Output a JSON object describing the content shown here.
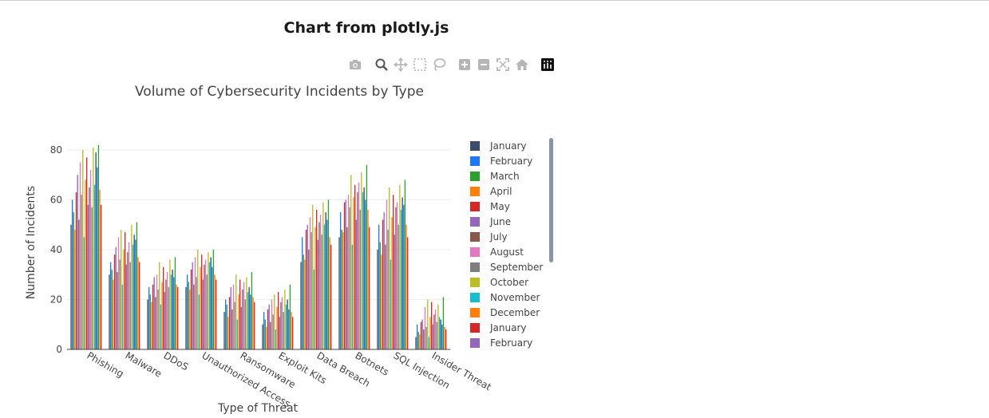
{
  "page": {
    "title": "Chart from plotly.js"
  },
  "modebar": {
    "buttons": [
      {
        "name": "camera-icon",
        "label": "Download plot as a png"
      },
      {
        "name": "zoom-icon",
        "label": "Zoom"
      },
      {
        "name": "pan-icon",
        "label": "Pan"
      },
      {
        "name": "box-select-icon",
        "label": "Box Select"
      },
      {
        "name": "lasso-select-icon",
        "label": "Lasso Select"
      },
      {
        "name": "zoom-in-icon",
        "label": "Zoom in"
      },
      {
        "name": "zoom-out-icon",
        "label": "Zoom out"
      },
      {
        "name": "autoscale-icon",
        "label": "Autoscale"
      },
      {
        "name": "reset-axes-icon",
        "label": "Reset axes"
      },
      {
        "name": "plotly-logo-icon",
        "label": "Produced with Plotly"
      }
    ],
    "active": "zoom-icon"
  },
  "chart_data": {
    "type": "bar",
    "title": "Volume of Cybersecurity Incidents by Type",
    "xlabel": "Type of Threat",
    "ylabel": "Number of Incidents",
    "ylim": [
      0,
      88
    ],
    "yticks": [
      0,
      20,
      40,
      60,
      80
    ],
    "grid": true,
    "legend_position": "right",
    "categories": [
      "Phishing",
      "Malware",
      "DDoS",
      "Unauthorized Access",
      "Ransomware",
      "Exploit Kits",
      "Data Breach",
      "Botnets",
      "SQL Injection",
      "Insider Threat"
    ],
    "series": [
      {
        "name": "January",
        "color": "#3b4d6b",
        "values": [
          50,
          30,
          20,
          25,
          15,
          10,
          35,
          45,
          40,
          5
        ]
      },
      {
        "name": "February",
        "color": "#1f77f4",
        "values": [
          60,
          35,
          25,
          30,
          20,
          15,
          45,
          55,
          50,
          10
        ]
      },
      {
        "name": "March",
        "color": "#2ca02c",
        "values": [
          55,
          32,
          22,
          27,
          18,
          12,
          38,
          48,
          43,
          7
        ]
      },
      {
        "name": "April",
        "color": "#ff7f0e",
        "values": [
          48,
          28,
          19,
          24,
          13,
          9,
          36,
          47,
          38,
          6
        ]
      },
      {
        "name": "May",
        "color": "#d62728",
        "values": [
          63,
          38,
          26,
          32,
          21,
          16,
          48,
          59,
          52,
          11
        ]
      },
      {
        "name": "June",
        "color": "#9467bd",
        "values": [
          70,
          41,
          29,
          35,
          25,
          18,
          50,
          60,
          55,
          12
        ]
      },
      {
        "name": "July",
        "color": "#8c564b",
        "values": [
          52,
          31,
          21,
          26,
          16,
          11,
          40,
          49,
          42,
          8
        ]
      },
      {
        "name": "August",
        "color": "#e377c2",
        "values": [
          75,
          45,
          30,
          37,
          26,
          20,
          53,
          62,
          60,
          17
        ]
      },
      {
        "name": "September",
        "color": "#7f7f7f",
        "values": [
          62,
          36,
          24,
          29,
          19,
          14,
          47,
          57,
          48,
          9
        ]
      },
      {
        "name": "October",
        "color": "#bcbd22",
        "values": [
          80,
          48,
          35,
          40,
          30,
          22,
          58,
          70,
          65,
          20
        ]
      },
      {
        "name": "November",
        "color": "#17becf",
        "values": [
          45,
          26,
          18,
          22,
          12,
          8,
          32,
          42,
          36,
          5
        ]
      },
      {
        "name": "December",
        "color": "#ff7f0e",
        "values": [
          68,
          40,
          27,
          33,
          22,
          17,
          49,
          61,
          53,
          13
        ]
      },
      {
        "name": "January",
        "color": "#d62728",
        "values": [
          77,
          47,
          33,
          38,
          28,
          23,
          56,
          66,
          62,
          19
        ]
      },
      {
        "name": "February",
        "color": "#9467bd",
        "values": [
          58,
          34,
          23,
          28,
          17,
          13,
          44,
          52,
          46,
          10
        ]
      },
      {
        "name": "",
        "color": "#8c564b",
        "values": [
          65,
          39,
          28,
          34,
          24,
          19,
          51,
          63,
          57,
          14
        ]
      },
      {
        "name": "",
        "color": "#e377c2",
        "values": [
          72,
          43,
          31,
          36,
          27,
          21,
          54,
          67,
          59,
          16
        ]
      },
      {
        "name": "",
        "color": "#7f7f7f",
        "values": [
          57,
          35,
          25,
          30,
          20,
          15,
          46,
          56,
          50,
          11
        ]
      },
      {
        "name": "",
        "color": "#bcbd22",
        "values": [
          81,
          50,
          36,
          39,
          29,
          24,
          59,
          71,
          66,
          18
        ]
      },
      {
        "name": "",
        "color": "#17becf",
        "values": [
          66,
          42,
          30,
          35,
          23,
          18,
          50,
          63,
          56,
          13
        ]
      },
      {
        "name": "",
        "color": "#3b4d6b",
        "values": [
          79,
          46,
          32,
          37,
          25,
          20,
          55,
          65,
          61,
          12
        ]
      },
      {
        "name": "",
        "color": "#1f77f4",
        "values": [
          73,
          44,
          29,
          33,
          22,
          16,
          52,
          60,
          58,
          10
        ]
      },
      {
        "name": "",
        "color": "#2ca02c",
        "values": [
          82,
          51,
          37,
          40,
          31,
          26,
          60,
          74,
          68,
          21
        ]
      },
      {
        "name": "",
        "color": "#ff7f0e",
        "values": [
          64,
          37,
          26,
          30,
          21,
          15,
          45,
          56,
          50,
          9
        ]
      },
      {
        "name": "",
        "color": "#d62728",
        "values": [
          58,
          35,
          25,
          28,
          19,
          13,
          42,
          49,
          45,
          8
        ]
      }
    ]
  }
}
